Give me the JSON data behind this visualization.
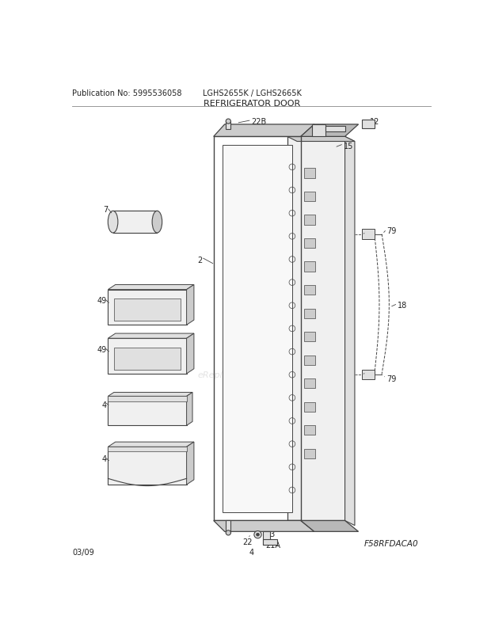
{
  "title": "REFRIGERATOR DOOR",
  "pub_no": "Publication No: 5995536058",
  "model": "LGHS2655K / LGHS2665K",
  "diagram_code": "F58RFDACA0",
  "date": "03/09",
  "page": "4",
  "bg_color": "#ffffff",
  "lc": "#444444",
  "lc_dark": "#222222",
  "fc_light": "#f0f0f0",
  "fc_mid": "#e0e0e0",
  "fc_dark": "#cccccc",
  "fc_darker": "#b8b8b8"
}
